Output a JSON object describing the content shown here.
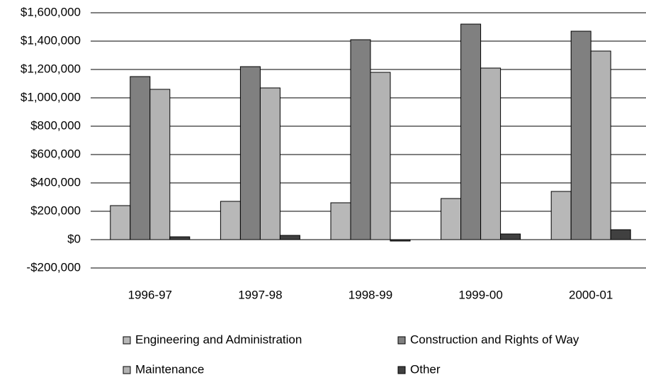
{
  "chart_data": {
    "type": "bar",
    "categories": [
      "1996-97",
      "1997-98",
      "1998-99",
      "1999-00",
      "2000-01"
    ],
    "series": [
      {
        "name": "Engineering and Administration",
        "color": "#b8b8b8",
        "values": [
          240000,
          270000,
          260000,
          290000,
          340000
        ]
      },
      {
        "name": "Construction and Rights of Way",
        "color": "#808080",
        "values": [
          1150000,
          1220000,
          1410000,
          1520000,
          1470000
        ]
      },
      {
        "name": "Maintenance",
        "color": "#b3b3b3",
        "values": [
          1060000,
          1070000,
          1180000,
          1210000,
          1330000
        ]
      },
      {
        "name": "Other",
        "color": "#404040",
        "values": [
          20000,
          30000,
          -10000,
          40000,
          70000
        ]
      }
    ],
    "ylim": [
      -200000,
      1600000
    ],
    "yticks": [
      {
        "value": -200000,
        "label": "-$200,000"
      },
      {
        "value": 0,
        "label": "$0"
      },
      {
        "value": 200000,
        "label": "$200,000"
      },
      {
        "value": 400000,
        "label": "$400,000"
      },
      {
        "value": 600000,
        "label": "$600,000"
      },
      {
        "value": 800000,
        "label": "$800,000"
      },
      {
        "value": 1000000,
        "label": "$1,000,000"
      },
      {
        "value": 1200000,
        "label": "$1,200,000"
      },
      {
        "value": 1400000,
        "label": "$1,400,000"
      },
      {
        "value": 1600000,
        "label": "$1,600,000"
      }
    ],
    "grid": true,
    "legend": "bottom"
  }
}
